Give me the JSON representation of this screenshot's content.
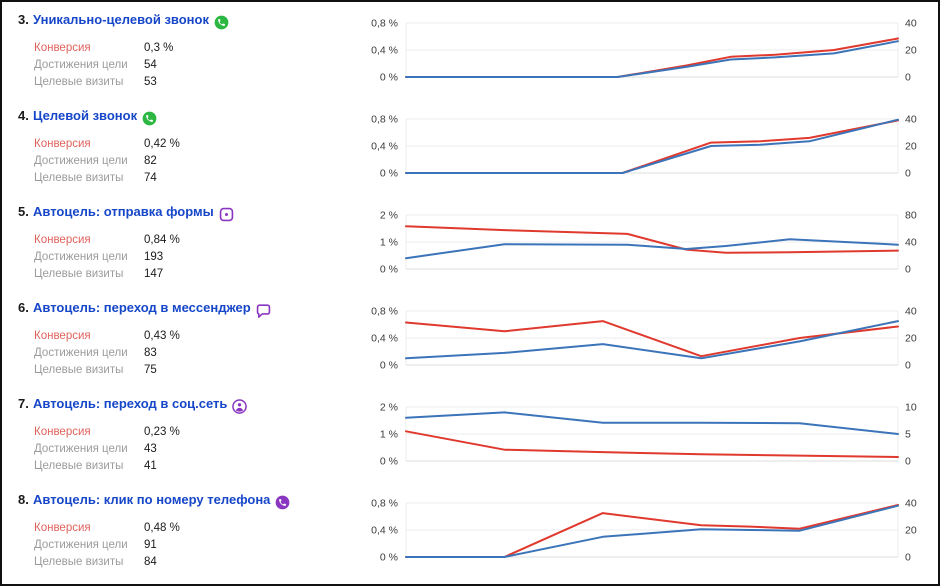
{
  "report": {
    "stats_labels": {
      "conversion": "Конверсия",
      "goal_reaches": "Достижения цели",
      "target_visits": "Целевые визиты"
    }
  },
  "colors": {
    "line_red": "#e0392e",
    "line_blue": "#3c74b9",
    "grid": "#ececec",
    "grid_bottom": "#dedede",
    "axis_text": "#3a3a3a",
    "title_blue": "#1747c9",
    "label_red": "#e0625c",
    "label_gray": "#9b9b9b",
    "whatsapp_green": "#2cb742",
    "autogoal_purple": "#8a36c1"
  },
  "rows": [
    {
      "num": "3.",
      "title": "Уникально-целевой звонок",
      "icon": "whatsapp-icon",
      "icon_color": "#2cb742",
      "stats": {
        "conversion": "0,3 %",
        "goal_reaches": "54",
        "target_visits": "53"
      },
      "chart": {
        "type": "line",
        "ymax": 0.8,
        "left_ticks": [
          "0,8 %",
          "0,4 %",
          "0 %"
        ],
        "right_ticks": [
          "40",
          "20",
          "0"
        ],
        "x": [
          0,
          0.14,
          0.29,
          0.43,
          0.57,
          0.66,
          0.75,
          0.87,
          1
        ],
        "series": [
          {
            "name": "conversion-rate",
            "color": "#e0392e",
            "values": [
              0,
              0,
              0,
              0,
              0.17,
              0.3,
              0.33,
              0.4,
              0.57
            ]
          },
          {
            "name": "goal-reaches",
            "color": "#3c74b9",
            "values": [
              0,
              0,
              0,
              0,
              0.15,
              0.26,
              0.29,
              0.35,
              0.53
            ]
          }
        ]
      }
    },
    {
      "num": "4.",
      "title": "Целевой звонок",
      "icon": "whatsapp-icon",
      "icon_color": "#2cb742",
      "stats": {
        "conversion": "0,42 %",
        "goal_reaches": "82",
        "target_visits": "74"
      },
      "chart": {
        "type": "line",
        "ymax": 0.8,
        "left_ticks": [
          "0,8 %",
          "0,4 %",
          "0 %"
        ],
        "right_ticks": [
          "40",
          "20",
          "0"
        ],
        "x": [
          0,
          0.15,
          0.3,
          0.44,
          0.62,
          0.72,
          0.82,
          1
        ],
        "series": [
          {
            "name": "conversion-rate",
            "color": "#e0392e",
            "values": [
              0,
              0,
              0,
              0,
              0.45,
              0.47,
              0.52,
              0.78
            ]
          },
          {
            "name": "goal-reaches",
            "color": "#3c74b9",
            "values": [
              0,
              0,
              0,
              0,
              0.4,
              0.42,
              0.47,
              0.79
            ]
          }
        ]
      }
    },
    {
      "num": "5.",
      "title": "Автоцель: отправка формы",
      "icon": "form-icon",
      "icon_color": "#8a36c1",
      "stats": {
        "conversion": "0,84 %",
        "goal_reaches": "193",
        "target_visits": "147"
      },
      "chart": {
        "type": "line",
        "ymax": 2,
        "left_ticks": [
          "2 %",
          "1 %",
          "0 %"
        ],
        "right_ticks": [
          "80",
          "40",
          "0"
        ],
        "x": [
          0,
          0.2,
          0.45,
          0.57,
          0.65,
          0.78,
          1
        ],
        "series": [
          {
            "name": "conversion-rate",
            "color": "#e0392e",
            "values": [
              1.58,
              1.44,
              1.3,
              0.72,
              0.6,
              0.62,
              0.68
            ]
          },
          {
            "name": "goal-reaches",
            "color": "#3c74b9",
            "values": [
              0.4,
              0.92,
              0.9,
              0.74,
              0.85,
              1.1,
              0.9
            ]
          }
        ]
      }
    },
    {
      "num": "6.",
      "title": "Автоцель: переход в мессенджер",
      "icon": "messenger-icon",
      "icon_color": "#8a36c1",
      "stats": {
        "conversion": "0,43 %",
        "goal_reaches": "83",
        "target_visits": "75"
      },
      "chart": {
        "type": "line",
        "ymax": 0.8,
        "left_ticks": [
          "0,8 %",
          "0,4 %",
          "0 %"
        ],
        "right_ticks": [
          "40",
          "20",
          "0"
        ],
        "x": [
          0,
          0.2,
          0.4,
          0.6,
          0.8,
          1
        ],
        "series": [
          {
            "name": "conversion-rate",
            "color": "#e0392e",
            "values": [
              0.63,
              0.5,
              0.65,
              0.13,
              0.4,
              0.57
            ]
          },
          {
            "name": "goal-reaches",
            "color": "#3c74b9",
            "values": [
              0.1,
              0.18,
              0.31,
              0.1,
              0.35,
              0.65
            ]
          }
        ]
      }
    },
    {
      "num": "7.",
      "title": "Автоцель: переход в соц.сеть",
      "icon": "social-network-icon",
      "icon_color": "#8a36c1",
      "stats": {
        "conversion": "0,23 %",
        "goal_reaches": "43",
        "target_visits": "41"
      },
      "chart": {
        "type": "line",
        "ymax": 2,
        "left_ticks": [
          "2 %",
          "1 %",
          "0 %"
        ],
        "right_ticks": [
          "10",
          "5",
          "0"
        ],
        "x": [
          0,
          0.2,
          0.4,
          0.6,
          0.8,
          1
        ],
        "series": [
          {
            "name": "conversion-rate",
            "color": "#e0392e",
            "values": [
              1.1,
              0.42,
              0.33,
              0.25,
              0.2,
              0.15
            ]
          },
          {
            "name": "goal-reaches",
            "color": "#3c74b9",
            "values": [
              1.6,
              1.8,
              1.42,
              1.42,
              1.4,
              1.0
            ]
          }
        ]
      }
    },
    {
      "num": "8.",
      "title": "Автоцель: клик по номеру телефона",
      "icon": "phone-call-icon",
      "icon_color": "#8a36c1",
      "stats": {
        "conversion": "0,48 %",
        "goal_reaches": "91",
        "target_visits": "84"
      },
      "chart": {
        "type": "line",
        "ymax": 0.8,
        "left_ticks": [
          "0,8 %",
          "0,4 %",
          "0 %"
        ],
        "right_ticks": [
          "40",
          "20",
          "0"
        ],
        "x": [
          0,
          0.2,
          0.4,
          0.6,
          0.7,
          0.8,
          1
        ],
        "series": [
          {
            "name": "conversion-rate",
            "color": "#e0392e",
            "values": [
              0,
              0,
              0.65,
              0.47,
              0.45,
              0.42,
              0.77
            ]
          },
          {
            "name": "goal-reaches",
            "color": "#3c74b9",
            "values": [
              0,
              0,
              0.3,
              0.41,
              0.4,
              0.39,
              0.76
            ]
          }
        ]
      }
    }
  ]
}
